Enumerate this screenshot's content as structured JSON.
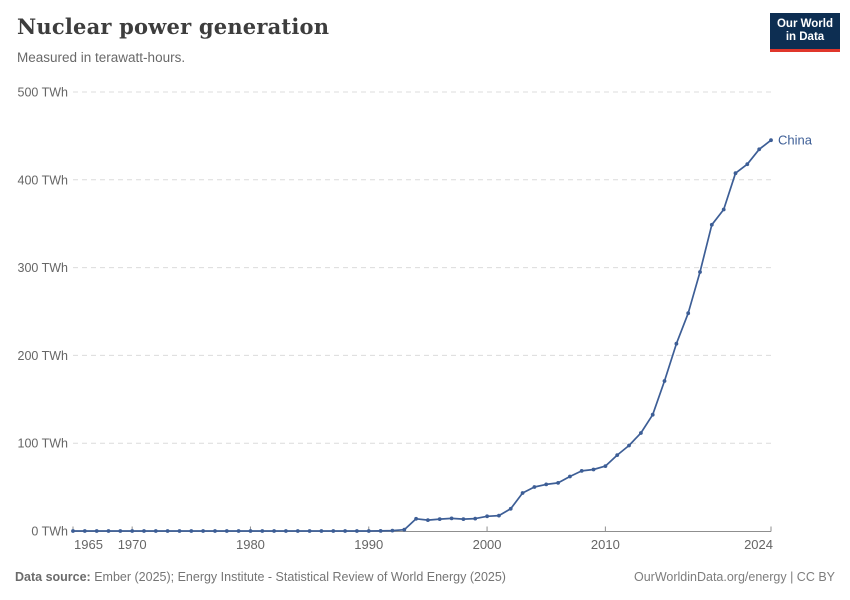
{
  "header": {
    "title": "Nuclear power generation",
    "subtitle": "Measured in terawatt-hours."
  },
  "logo": {
    "line1": "Our World",
    "line2": "in Data"
  },
  "footer": {
    "source_label": "Data source:",
    "source_text": " Ember (2025); Energy Institute - Statistical Review of World Energy (2025)",
    "right_text": "OurWorldinData.org/energy | CC BY"
  },
  "colors": {
    "series_line": "#3d5e96",
    "gridline": "#dcdcdc",
    "axis_line": "#8f8f8f",
    "tick_label": "#666666",
    "title_text": "#3d3d3d",
    "logo_background": "#0d2e52",
    "logo_stripe": "#e0362b"
  },
  "chart_data": {
    "type": "line",
    "title": "Nuclear power generation",
    "subtitle": "Measured in terawatt-hours.",
    "ylabel_unit": "TWh",
    "xlim": [
      1965,
      2024
    ],
    "ylim": [
      0,
      500
    ],
    "x_ticks": [
      1965,
      1970,
      1980,
      1990,
      2000,
      2010,
      2024
    ],
    "y_ticks": [
      0,
      100,
      200,
      300,
      400,
      500
    ],
    "y_tick_suffix": " TWh",
    "grid": "dashed-horizontal",
    "legend": "inline-end-label",
    "series": [
      {
        "name": "China",
        "color": "#3d5e96",
        "years": [
          1965,
          1966,
          1967,
          1968,
          1969,
          1970,
          1971,
          1972,
          1973,
          1974,
          1975,
          1976,
          1977,
          1978,
          1979,
          1980,
          1981,
          1982,
          1983,
          1984,
          1985,
          1986,
          1987,
          1988,
          1989,
          1990,
          1991,
          1992,
          1993,
          1994,
          1995,
          1996,
          1997,
          1998,
          1999,
          2000,
          2001,
          2002,
          2003,
          2004,
          2005,
          2006,
          2007,
          2008,
          2009,
          2010,
          2011,
          2012,
          2013,
          2014,
          2015,
          2016,
          2017,
          2018,
          2019,
          2020,
          2021,
          2022,
          2023,
          2024
        ],
        "values": [
          0,
          0,
          0,
          0,
          0,
          0,
          0,
          0,
          0,
          0,
          0,
          0,
          0,
          0,
          0,
          0,
          0,
          0,
          0,
          0,
          0,
          0,
          0,
          0,
          0,
          0,
          0.1,
          0.5,
          1.5,
          13.9,
          12.4,
          13.6,
          14.4,
          13.5,
          14.1,
          16.7,
          17.5,
          25.3,
          43.3,
          50.1,
          53.1,
          54.8,
          62.1,
          68.4,
          70.1,
          73.9,
          86.4,
          97.4,
          111.6,
          132.5,
          170.8,
          213.3,
          248.1,
          295.0,
          348.7,
          366.2,
          407.5,
          417.8,
          434.7,
          445.1
        ]
      }
    ]
  }
}
